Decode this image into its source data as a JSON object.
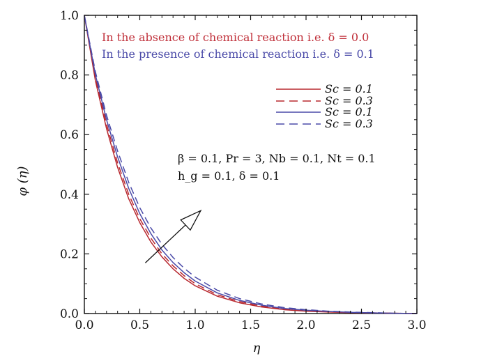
{
  "chart_data": {
    "type": "line",
    "xlabel": "η",
    "ylabel": "φ (η)",
    "xlim": [
      0.0,
      3.0
    ],
    "ylim": [
      0.0,
      1.0
    ],
    "x_ticks": [
      "0.0",
      "0.5",
      "1.0",
      "1.5",
      "2.0",
      "2.5",
      "3.0"
    ],
    "y_ticks": [
      "0.0",
      "0.2",
      "0.4",
      "0.6",
      "0.8",
      "1.0"
    ],
    "grid": false,
    "legend_position": "upper-right",
    "annotations": {
      "absence": "In the absence of chemical reaction i.e. δ = 0.0",
      "presence": "In the presence of chemical reaction i.e. δ = 0.1",
      "params_line1": "β = 0.1, Pr = 3, Nb = 0.1, Nt = 0.1",
      "params_line2": "h_g = 0.1, δ = 0.1"
    },
    "colors": {
      "red": "#b8282f",
      "blue": "#4a4aa8",
      "arrow": "#111111"
    },
    "x": [
      0.0,
      0.1,
      0.2,
      0.3,
      0.4,
      0.5,
      0.6,
      0.7,
      0.8,
      0.9,
      1.0,
      1.2,
      1.4,
      1.6,
      1.8,
      2.0,
      2.2,
      2.4,
      2.6,
      2.8,
      3.0
    ],
    "series": [
      {
        "name": "Sc = 0.1",
        "color": "red",
        "dash": "solid",
        "values": [
          1.0,
          0.78,
          0.62,
          0.49,
          0.385,
          0.305,
          0.24,
          0.19,
          0.15,
          0.118,
          0.093,
          0.058,
          0.036,
          0.022,
          0.013,
          0.008,
          0.005,
          0.003,
          0.002,
          0.001,
          0.0
        ]
      },
      {
        "name": "Sc = 0.3",
        "color": "red",
        "dash": "dashed",
        "values": [
          1.0,
          0.79,
          0.635,
          0.505,
          0.4,
          0.318,
          0.253,
          0.2,
          0.16,
          0.127,
          0.1,
          0.063,
          0.04,
          0.025,
          0.015,
          0.009,
          0.006,
          0.003,
          0.002,
          0.001,
          0.0
        ]
      },
      {
        "name": "Sc = 0.1",
        "color": "blue",
        "dash": "solid",
        "values": [
          1.0,
          0.8,
          0.65,
          0.525,
          0.42,
          0.335,
          0.268,
          0.213,
          0.171,
          0.137,
          0.109,
          0.069,
          0.044,
          0.028,
          0.017,
          0.011,
          0.007,
          0.004,
          0.002,
          0.001,
          0.0
        ]
      },
      {
        "name": "Sc = 0.3",
        "color": "blue",
        "dash": "dashed",
        "values": [
          1.0,
          0.81,
          0.665,
          0.545,
          0.44,
          0.355,
          0.287,
          0.232,
          0.188,
          0.152,
          0.122,
          0.078,
          0.05,
          0.032,
          0.02,
          0.013,
          0.008,
          0.005,
          0.003,
          0.001,
          0.0
        ]
      }
    ],
    "arrow": {
      "from": [
        0.55,
        0.17
      ],
      "to": [
        1.05,
        0.345
      ]
    }
  }
}
